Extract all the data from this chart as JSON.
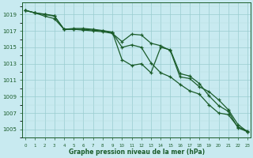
{
  "title": "Graphe pression niveau de la mer (hPa)",
  "bg_color": "#c8eaf0",
  "grid_color_minor": "#b8dde0",
  "grid_color_major": "#99ccd0",
  "line_color": "#1a5c2a",
  "x_ticks": [
    0,
    1,
    2,
    3,
    4,
    5,
    6,
    7,
    8,
    9,
    10,
    11,
    12,
    13,
    14,
    15,
    16,
    17,
    18,
    19,
    20,
    21,
    22,
    23
  ],
  "y_ticks": [
    1005,
    1007,
    1009,
    1011,
    1013,
    1015,
    1017,
    1019
  ],
  "ylim": [
    1004.0,
    1020.5
  ],
  "xlim": [
    -0.3,
    23.3
  ],
  "series": {
    "line1": [
      1019.5,
      1019.2,
      1019.0,
      1018.8,
      1017.2,
      1017.3,
      1017.3,
      1017.2,
      1017.05,
      1016.85,
      1013.5,
      1012.8,
      1013.0,
      1011.9,
      1015.0,
      1014.7,
      1011.8,
      1011.5,
      1010.6,
      1009.1,
      1007.9,
      1007.2,
      1005.2,
      1004.7
    ],
    "line2": [
      1019.5,
      1019.2,
      1019.05,
      1018.85,
      1017.2,
      1017.2,
      1017.2,
      1017.1,
      1017.0,
      1016.8,
      1015.0,
      1015.3,
      1015.0,
      1013.1,
      1011.9,
      1011.4,
      1010.5,
      1009.7,
      1009.3,
      1008.0,
      1007.0,
      1006.8,
      1005.3,
      1004.8
    ],
    "line3": [
      1019.5,
      1019.2,
      1018.8,
      1018.5,
      1017.2,
      1017.2,
      1017.1,
      1017.0,
      1016.9,
      1016.7,
      1015.7,
      1016.6,
      1016.5,
      1015.5,
      1015.2,
      1014.6,
      1011.4,
      1011.2,
      1010.2,
      1009.6,
      1008.6,
      1007.4,
      1005.6,
      1004.7
    ]
  }
}
